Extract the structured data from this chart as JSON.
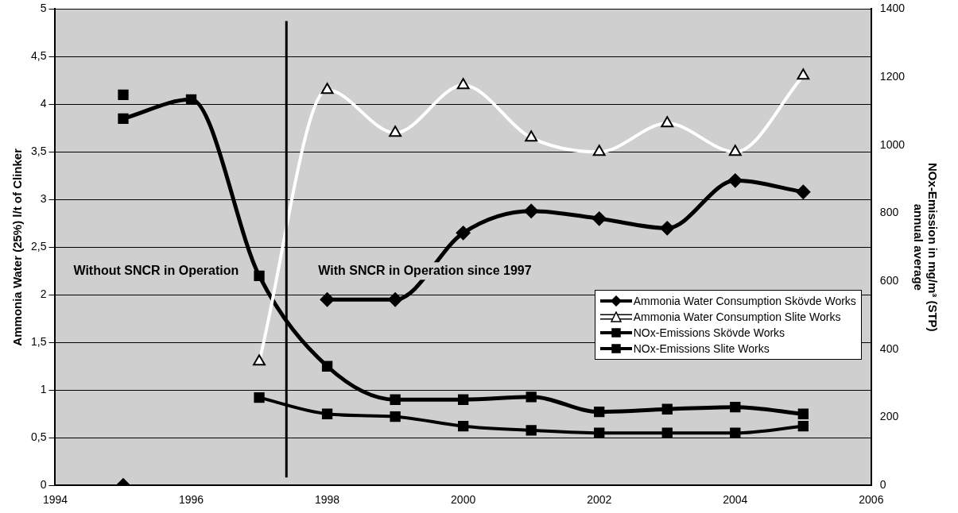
{
  "chart_data": {
    "type": "line",
    "xlabel": null,
    "ylabel": "Ammonia Water (25%) l/t of Clinker",
    "y2label": "NOx-Emission in mg/m³ (STP) annual average",
    "xlim": [
      1994,
      2006
    ],
    "xticks": [
      1994,
      1996,
      1998,
      2000,
      2002,
      2004,
      2006
    ],
    "ylim": [
      0,
      5
    ],
    "yticks": [
      0,
      {
        "value": 0.5,
        "label": "0,5"
      },
      1,
      {
        "value": 1.5,
        "label": "1,5"
      },
      2,
      {
        "value": 2.5,
        "label": "2,5"
      },
      3,
      {
        "value": 3.5,
        "label": "3,5"
      },
      4,
      {
        "value": 4.5,
        "label": "4,5"
      },
      5
    ],
    "y2lim": [
      0,
      1400
    ],
    "y2ticks": [
      0,
      200,
      400,
      600,
      800,
      1000,
      1200,
      1400
    ],
    "grid": "y",
    "legend": "bottom right",
    "ref_lines": [
      {
        "axis": "x",
        "value": 1997.4,
        "color": "#000000"
      }
    ],
    "annotations": [
      "Without SNCR in Operation",
      "With SNCR in Operation since 1997"
    ],
    "series": [
      {
        "name": "Ammonia Water Consumption Skövde Works",
        "color": "#000000",
        "marker": "diamond",
        "x": [
          1995,
          1996,
          1997,
          1998,
          1999,
          2000,
          2001,
          2002,
          2003,
          2004,
          2005
        ],
        "values": [
          0,
          null,
          null,
          1.95,
          1.95,
          2.65,
          2.88,
          2.8,
          2.7,
          3.2,
          3.08
        ]
      },
      {
        "name": "Ammonia Water Consumption Slite Works",
        "color": "#ffffff",
        "marker": "triangle",
        "x": [
          1997,
          1998,
          1999,
          2000,
          2001,
          2002,
          2003,
          2004,
          2005
        ],
        "values": [
          1.3,
          4.15,
          3.7,
          4.2,
          3.65,
          3.5,
          3.8,
          3.5,
          4.3
        ]
      },
      {
        "name": "NOx-Emissions Skövde Works",
        "color": "#000000",
        "marker": "square",
        "axis": "y2",
        "x": [
          1995,
          1996,
          1997,
          1998,
          1999,
          2000,
          2001,
          2002,
          2003,
          2004,
          2005
        ],
        "values": [
          1148,
          null,
          258,
          210,
          202,
          174,
          162,
          154,
          154,
          154,
          174
        ]
      },
      {
        "name": "NOx-Emissions Slite Works",
        "color": "#000000",
        "marker": "square",
        "axis": "y2",
        "x": [
          1995,
          1996,
          1997,
          1998,
          1999,
          2000,
          2001,
          2002,
          2003,
          2004,
          2005
        ],
        "values": [
          1078,
          1134,
          616,
          350,
          252,
          252,
          260,
          216,
          224,
          230,
          210
        ]
      }
    ]
  }
}
